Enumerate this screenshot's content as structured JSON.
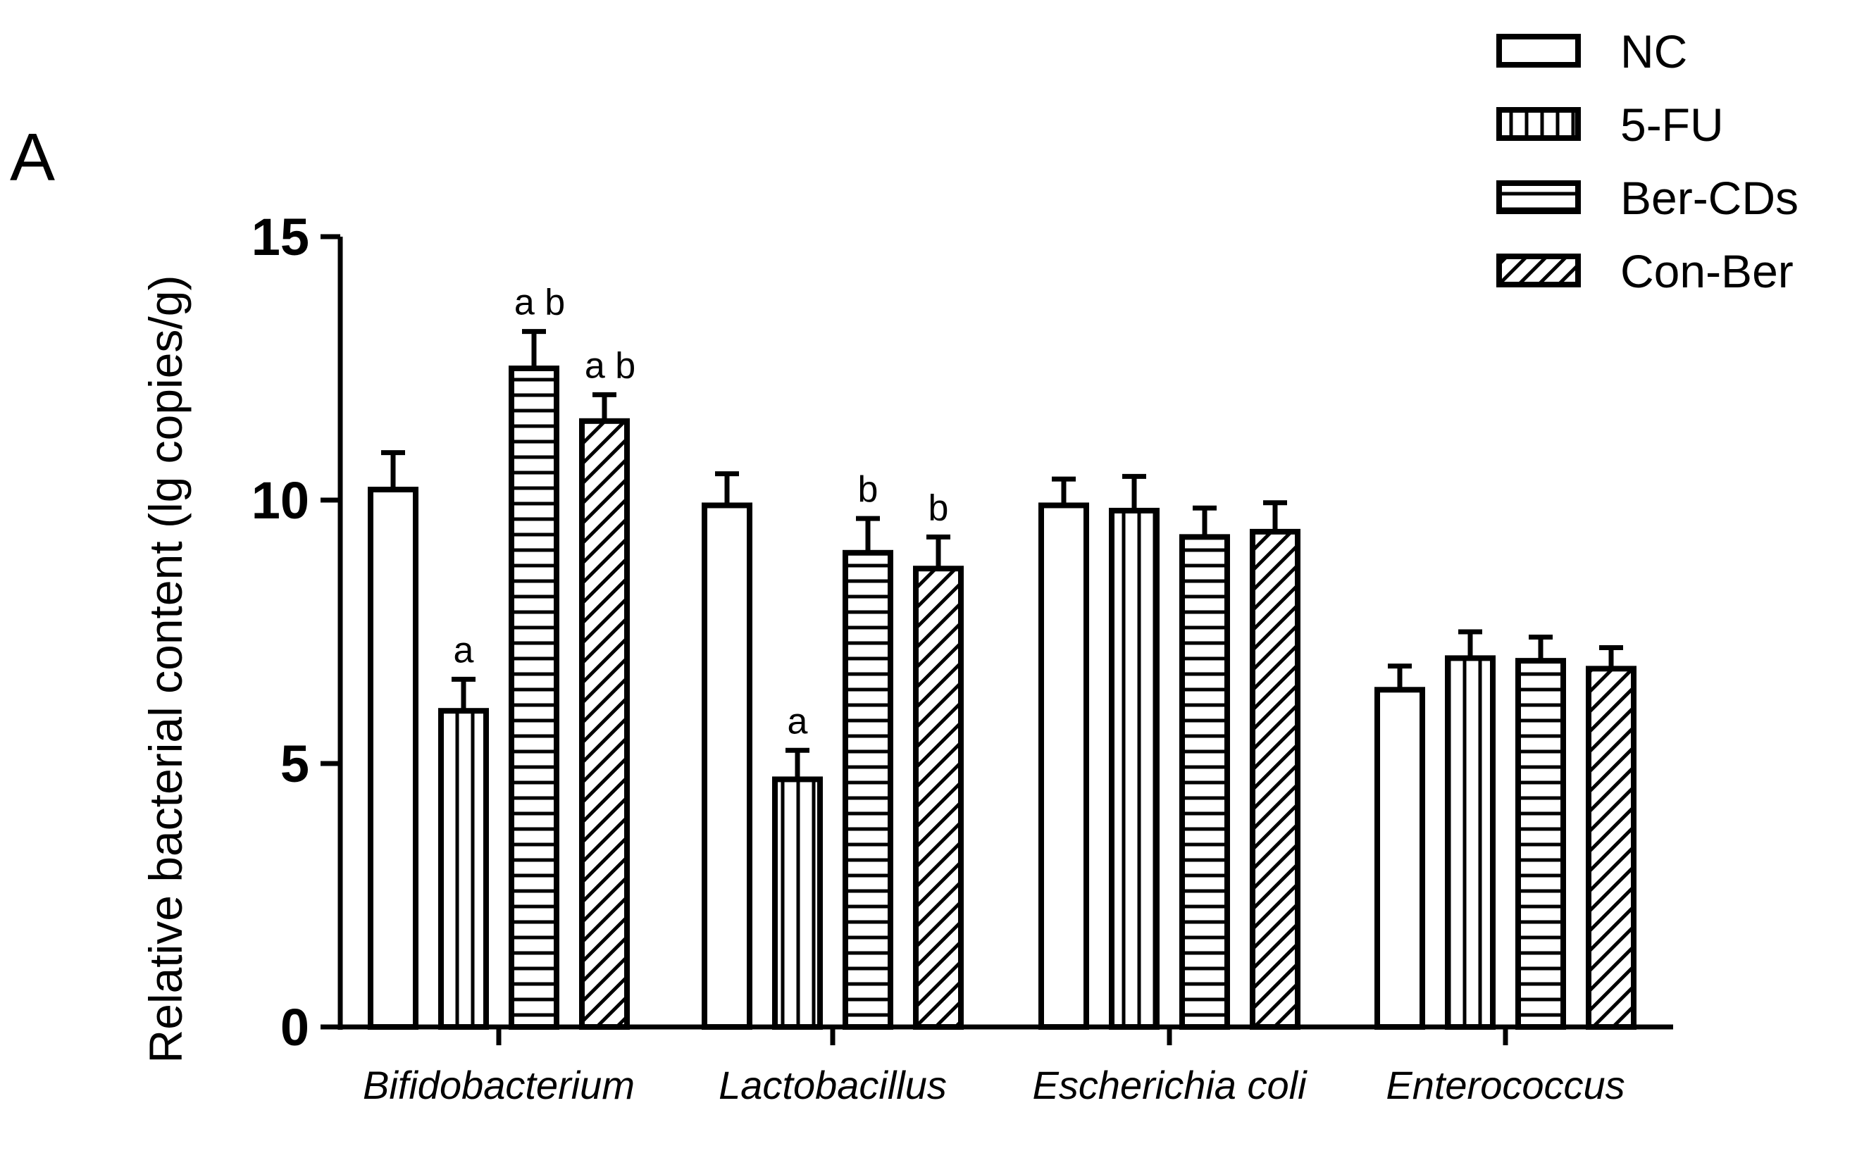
{
  "chart_data": {
    "type": "bar",
    "panel_label": "A",
    "title": "",
    "xlabel": "",
    "ylabel": "Relative bacterial content (lg copies/g)",
    "ylim": [
      0,
      15
    ],
    "yticks": [
      0,
      5,
      10,
      15
    ],
    "ytick_labels": [
      "0",
      "5",
      "10",
      "15"
    ],
    "categories": [
      "Bifidobacterium",
      "Lactobacillus",
      "Escherichia coli",
      "Enterococcus"
    ],
    "legend_position": "top-right",
    "series": [
      {
        "name": "NC",
        "pattern": "none",
        "values": [
          10.2,
          9.9,
          9.9,
          6.4
        ],
        "errors": [
          0.7,
          0.6,
          0.5,
          0.45
        ],
        "annotations": [
          "",
          "",
          "",
          ""
        ]
      },
      {
        "name": "5-FU",
        "pattern": "vertical",
        "values": [
          6.0,
          4.7,
          9.8,
          7.0
        ],
        "errors": [
          0.6,
          0.55,
          0.65,
          0.5
        ],
        "annotations": [
          "a",
          "a",
          "",
          ""
        ]
      },
      {
        "name": "Ber-CDs",
        "pattern": "horizontal",
        "values": [
          12.5,
          9.0,
          9.3,
          6.95
        ],
        "errors": [
          0.7,
          0.65,
          0.55,
          0.45
        ],
        "annotations": [
          "a b",
          "b",
          "",
          ""
        ]
      },
      {
        "name": "Con-Ber",
        "pattern": "diagonal",
        "values": [
          11.5,
          8.7,
          9.4,
          6.8
        ],
        "errors": [
          0.5,
          0.6,
          0.55,
          0.4
        ],
        "annotations": [
          "a b",
          "b",
          "",
          ""
        ]
      }
    ]
  }
}
